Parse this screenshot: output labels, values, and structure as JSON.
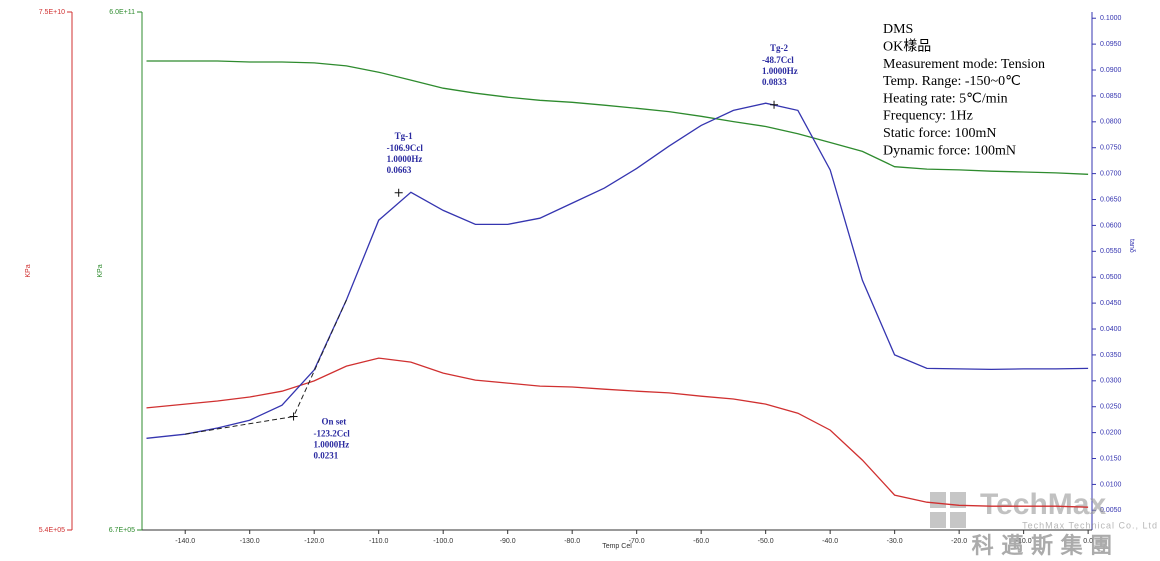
{
  "chart_data": {
    "type": "line",
    "x": [
      -146,
      -140,
      -135,
      -130,
      -125,
      -120,
      -115,
      -110,
      -105,
      -100,
      -95,
      -90,
      -85,
      -80,
      -75,
      -70,
      -65,
      -60,
      -55,
      -50,
      -45,
      -40,
      -35,
      -30,
      -25,
      -20,
      -15,
      -10,
      -5,
      0
    ],
    "xlim": [
      -146.7,
      0.6
    ],
    "xticks": [
      {
        "value": -140,
        "label": "-140.0"
      },
      {
        "value": -130,
        "label": "-130.0"
      },
      {
        "value": -120,
        "label": "-120.0"
      },
      {
        "value": -110,
        "label": "-110.0"
      },
      {
        "value": -100,
        "label": "-100.0"
      },
      {
        "value": -90,
        "label": "-90.0"
      },
      {
        "value": -80,
        "label": "-80.0"
      },
      {
        "value": -70,
        "label": "-70.0"
      },
      {
        "value": -60,
        "label": "-60.0"
      },
      {
        "value": -50,
        "label": "-50.0"
      },
      {
        "value": -40,
        "label": "-40.0"
      },
      {
        "value": -30,
        "label": "-30.0"
      },
      {
        "value": -20,
        "label": "-20.0"
      },
      {
        "value": -10,
        "label": "-10.0"
      },
      {
        "value": 0,
        "label": "0.0"
      }
    ],
    "xlabel": "Temp Cel",
    "ylabel": "KPa",
    "ylim": [
      670000,
      600000000000
    ],
    "ylog": true,
    "yticks": [
      {
        "value": 670000,
        "label": "6.7E+05"
      },
      {
        "value": 600000000000,
        "label": "6.0E+11"
      }
    ],
    "y3label": "KPa",
    "y3lim": [
      540000,
      75000000000
    ],
    "y3log": true,
    "y3ticks": [
      {
        "value": 540000,
        "label": "5.4E+05"
      },
      {
        "value": 75000000000,
        "label": "7.5E+10"
      }
    ],
    "y2label": "tanδ",
    "y2lim": [
      0.0012,
      0.1012
    ],
    "y2ticks": [
      {
        "value": 0.005,
        "label": "0.0050"
      },
      {
        "value": 0.01,
        "label": "0.0100"
      },
      {
        "value": 0.015,
        "label": "0.0150"
      },
      {
        "value": 0.02,
        "label": "0.0200"
      },
      {
        "value": 0.025,
        "label": "0.0250"
      },
      {
        "value": 0.03,
        "label": "0.0300"
      },
      {
        "value": 0.035,
        "label": "0.0350"
      },
      {
        "value": 0.04,
        "label": "0.0400"
      },
      {
        "value": 0.045,
        "label": "0.0450"
      },
      {
        "value": 0.05,
        "label": "0.0500"
      },
      {
        "value": 0.055,
        "label": "0.0550"
      },
      {
        "value": 0.06,
        "label": "0.0600"
      },
      {
        "value": 0.065,
        "label": "0.0650"
      },
      {
        "value": 0.07,
        "label": "0.0700"
      },
      {
        "value": 0.075,
        "label": "0.0750"
      },
      {
        "value": 0.08,
        "label": "0.0800"
      },
      {
        "value": 0.085,
        "label": "0.0850"
      },
      {
        "value": 0.09,
        "label": "0.0900"
      },
      {
        "value": 0.095,
        "label": "0.0950"
      },
      {
        "value": 0.1,
        "label": "0.1000"
      }
    ],
    "series": [
      {
        "color": "#2e8b2e",
        "axis": "y",
        "values": [
          164000000000.0,
          164000000000.0,
          164000000000.0,
          160000000000.0,
          160000000000.0,
          156000000000.0,
          144000000000.0,
          122000000000.0,
          99000000000.0,
          80000000000.0,
          70000000000.0,
          63000000000.0,
          58000000000.0,
          55000000000.0,
          51000000000.0,
          47000000000.0,
          43000000000.0,
          38000000000.0,
          33000000000.0,
          29000000000.0,
          24000000000.0,
          19000000000.0,
          15000000000.0,
          10000000000.0,
          9400000000.0,
          9200000000.0,
          8900000000.0,
          8700000000.0,
          8500000000.0,
          8200000000.0
        ]
      },
      {
        "color": "#d03030",
        "axis": "y3",
        "values": [
          8800000.0,
          9600000.0,
          10300000.0,
          11300000.0,
          12900000.0,
          16300000.0,
          22900000.0,
          27500000.0,
          25100000.0,
          19500000.0,
          16600000.0,
          15500000.0,
          14500000.0,
          14200000.0,
          13500000.0,
          12900000.0,
          12400000.0,
          11500000.0,
          10800000.0,
          9600000.0,
          7800000.0,
          5300000.0,
          2670000.0,
          1200000.0,
          1020000.0,
          950000.0,
          930000.0,
          930000.0,
          930000.0,
          910000.0
        ]
      },
      {
        "color": "#3535b0",
        "axis": "y2",
        "values": [
          0.0189,
          0.0197,
          0.0209,
          0.0224,
          0.0253,
          0.0321,
          0.0456,
          0.061,
          0.0664,
          0.0629,
          0.0602,
          0.0602,
          0.0614,
          0.0643,
          0.0672,
          0.071,
          0.0753,
          0.0793,
          0.0822,
          0.0836,
          0.0822,
          0.0707,
          0.0494,
          0.035,
          0.0324,
          0.0323,
          0.0322,
          0.0323,
          0.0323,
          0.0324
        ]
      }
    ],
    "annotations": [
      {
        "label": "Tg-1",
        "x": -106.9,
        "x_label": "-106.9Ccl",
        "freq": "1.0000Hz",
        "y": 0.0663
      },
      {
        "label": "Tg-2",
        "x": -48.7,
        "x_label": "-48.7Ccl",
        "freq": "1.0000Hz",
        "y": 0.0833
      },
      {
        "label": "On set",
        "x": -123.2,
        "x_label": "-123.2Ccl",
        "freq": "1.0000Hz",
        "y": 0.0231
      }
    ],
    "info": [
      "DMS",
      "OK樣品",
      "Measurement mode: Tension",
      "Temp. Range: -150~0℃",
      "Heating rate: 5℃/min",
      "Frequency: 1Hz",
      "Static force: 100mN",
      "Dynamic force: 100mN"
    ],
    "watermark": {
      "brand": "TechMax",
      "company": "TechMax Technical Co., Ltd",
      "chinese": "科 邁 斯 集 團"
    }
  }
}
